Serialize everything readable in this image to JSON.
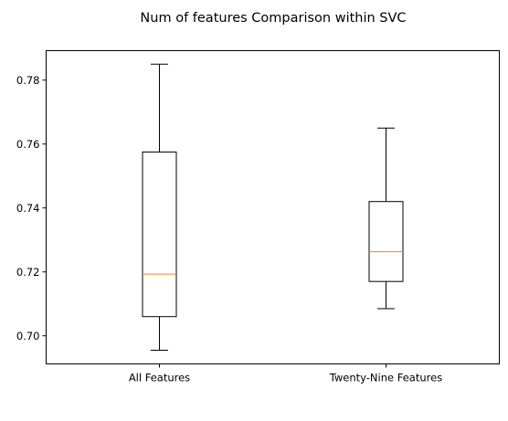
{
  "chart_data": {
    "type": "boxplot",
    "title": "Num of features Comparison within SVC",
    "xlabel": "",
    "ylabel": "",
    "categories": [
      "All Features",
      "Twenty-Nine Features"
    ],
    "boxes": [
      {
        "category": "All Features",
        "whisker_low": 0.6955,
        "q1": 0.706,
        "median": 0.7193,
        "q3": 0.7575,
        "whisker_high": 0.785
      },
      {
        "category": "Twenty-Nine Features",
        "whisker_low": 0.7085,
        "q1": 0.717,
        "median": 0.7263,
        "q3": 0.742,
        "whisker_high": 0.765
      }
    ],
    "ylim": [
      0.6912,
      0.7892
    ],
    "yticks": [
      0.7,
      0.72,
      0.74,
      0.76,
      0.78
    ],
    "ytick_labels": [
      "0.70",
      "0.72",
      "0.74",
      "0.76",
      "0.78"
    ],
    "grid": false,
    "colors": {
      "box": "#000000",
      "median": "#ff7f0e",
      "axes": "#000000"
    }
  }
}
